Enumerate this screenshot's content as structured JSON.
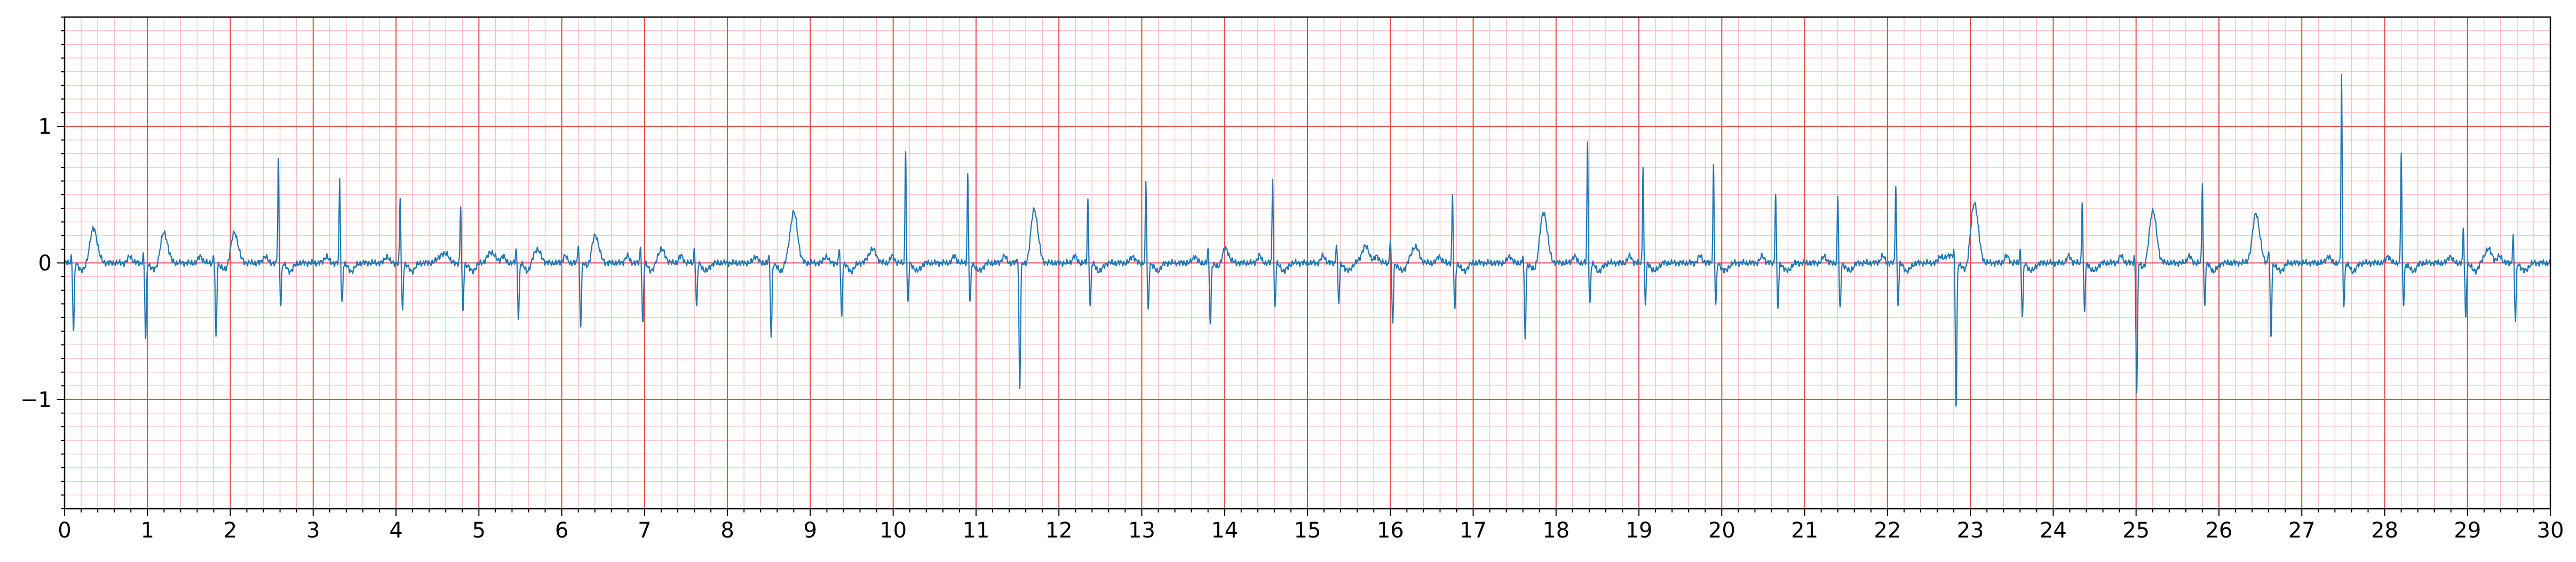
{
  "chart_data": {
    "type": "line",
    "title": "",
    "xlabel": "",
    "ylabel": "",
    "xlim": [
      0,
      30
    ],
    "ylim": [
      -1.8,
      1.8
    ],
    "x_ticks": [
      0,
      1,
      2,
      3,
      4,
      5,
      6,
      7,
      8,
      9,
      10,
      11,
      12,
      13,
      14,
      15,
      16,
      17,
      18,
      19,
      20,
      21,
      22,
      23,
      24,
      25,
      26,
      27,
      28,
      29,
      30
    ],
    "x_tick_labels": [
      "0",
      "1",
      "2",
      "3",
      "4",
      "5",
      "6",
      "7",
      "8",
      "9",
      "10",
      "11",
      "12",
      "13",
      "14",
      "15",
      "16",
      "17",
      "18",
      "19",
      "20",
      "21",
      "22",
      "23",
      "24",
      "25",
      "26",
      "27",
      "28",
      "29",
      "30"
    ],
    "y_ticks": [
      -1,
      0,
      1
    ],
    "y_tick_labels": [
      "−1",
      "0",
      "1"
    ],
    "grid": true,
    "grid_major": {
      "x_step": 1,
      "y_step": 1,
      "color": "#e8474a"
    },
    "grid_minor": {
      "x_step": 0.2,
      "y_step": 0.1,
      "color": "#ffbcbc"
    },
    "line_color": "#1f77b4",
    "series": [
      {
        "beats": [
          {
            "x": 0.08,
            "r": 0.05,
            "s": -0.5
          },
          {
            "x": 0.95,
            "r": 0.06,
            "s": -0.55
          },
          {
            "x": 1.8,
            "r": 0.05,
            "s": -0.55
          },
          {
            "x": 2.58,
            "r": 0.75,
            "s": -0.3
          },
          {
            "x": 3.32,
            "r": 0.62,
            "s": -0.3
          },
          {
            "x": 4.05,
            "r": 0.47,
            "s": -0.35
          },
          {
            "x": 4.78,
            "r": 0.41,
            "s": -0.35
          },
          {
            "x": 5.45,
            "r": 0.1,
            "s": -0.4
          },
          {
            "x": 6.2,
            "r": 0.15,
            "s": -0.47
          },
          {
            "x": 6.95,
            "r": 0.12,
            "s": -0.45
          },
          {
            "x": 7.6,
            "r": 0.1,
            "s": -0.32
          },
          {
            "x": 8.5,
            "r": 0.05,
            "s": -0.55
          },
          {
            "x": 9.35,
            "r": 0.1,
            "s": -0.4
          },
          {
            "x": 10.15,
            "r": 0.84,
            "s": -0.3
          },
          {
            "x": 10.9,
            "r": 0.65,
            "s": -0.3
          },
          {
            "x": 11.5,
            "r": 0.05,
            "s": -0.92
          },
          {
            "x": 12.35,
            "r": 0.47,
            "s": -0.32
          },
          {
            "x": 13.05,
            "r": 0.6,
            "s": -0.35
          },
          {
            "x": 13.8,
            "r": 0.1,
            "s": -0.45
          },
          {
            "x": 14.58,
            "r": 0.63,
            "s": -0.32
          },
          {
            "x": 15.35,
            "r": 0.15,
            "s": -0.3
          },
          {
            "x": 16.0,
            "r": 0.18,
            "s": -0.45
          },
          {
            "x": 16.75,
            "r": 0.49,
            "s": -0.35
          },
          {
            "x": 17.6,
            "r": 0.05,
            "s": -0.55
          },
          {
            "x": 18.38,
            "r": 0.88,
            "s": -0.3
          },
          {
            "x": 19.05,
            "r": 0.71,
            "s": -0.3
          },
          {
            "x": 19.9,
            "r": 0.71,
            "s": -0.3
          },
          {
            "x": 20.65,
            "r": 0.52,
            "s": -0.33
          },
          {
            "x": 21.4,
            "r": 0.5,
            "s": -0.35
          },
          {
            "x": 22.1,
            "r": 0.58,
            "s": -0.3
          },
          {
            "x": 22.8,
            "r": 0.05,
            "s": -1.06
          },
          {
            "x": 23.6,
            "r": 0.1,
            "s": -0.4
          },
          {
            "x": 24.35,
            "r": 0.45,
            "s": -0.35
          },
          {
            "x": 24.98,
            "r": 0.05,
            "s": -0.95
          },
          {
            "x": 25.8,
            "r": 0.59,
            "s": -0.3
          },
          {
            "x": 26.6,
            "r": 0.1,
            "s": -0.55
          },
          {
            "x": 27.48,
            "r": 1.37,
            "s": -0.3
          },
          {
            "x": 28.2,
            "r": 0.8,
            "s": -0.3
          },
          {
            "x": 28.95,
            "r": 0.25,
            "s": -0.4
          },
          {
            "x": 29.55,
            "r": 0.2,
            "s": -0.43
          }
        ],
        "t_waves": [
          {
            "x": 0.35,
            "a": 0.25
          },
          {
            "x": 1.2,
            "a": 0.22
          },
          {
            "x": 2.05,
            "a": 0.22
          },
          {
            "x": 4.55,
            "a": 0.06
          },
          {
            "x": 5.15,
            "a": 0.08
          },
          {
            "x": 5.7,
            "a": 0.1
          },
          {
            "x": 6.4,
            "a": 0.22
          },
          {
            "x": 7.2,
            "a": 0.1
          },
          {
            "x": 8.8,
            "a": 0.37
          },
          {
            "x": 9.75,
            "a": 0.1
          },
          {
            "x": 11.7,
            "a": 0.41
          },
          {
            "x": 14.0,
            "a": 0.12
          },
          {
            "x": 15.7,
            "a": 0.12
          },
          {
            "x": 16.3,
            "a": 0.12
          },
          {
            "x": 17.85,
            "a": 0.37
          },
          {
            "x": 22.75,
            "a": 0.06
          },
          {
            "x": 23.05,
            "a": 0.44
          },
          {
            "x": 25.2,
            "a": 0.39
          },
          {
            "x": 26.45,
            "a": 0.32
          },
          {
            "x": 29.25,
            "a": 0.1
          }
        ]
      }
    ]
  }
}
